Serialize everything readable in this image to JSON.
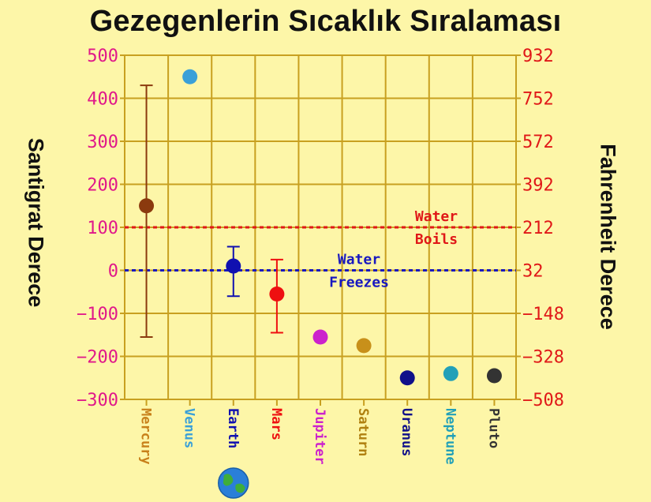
{
  "title": "Gezegenlerin Sıcaklık Sıralaması",
  "chart_data": {
    "type": "scatter",
    "title": "Gezegenlerin Sıcaklık Sıralaması",
    "ylabel": "Santigrat Derece",
    "ylabel_right": "Fahrenheit Derece",
    "ylim": [
      -300,
      500
    ],
    "yticks": [
      "500",
      "400",
      "300",
      "200",
      "100",
      "0",
      "−100",
      "−200",
      "−300"
    ],
    "yticks_right": [
      "932",
      "752",
      "572",
      "392",
      "212",
      "32",
      "−148",
      "−328",
      "−508"
    ],
    "grid": true,
    "categories": [
      "Mercury",
      "Venus",
      "Earth",
      "Mars",
      "Jupiter",
      "Saturn",
      "Uranus",
      "Neptune",
      "Pluto"
    ],
    "points": [
      {
        "planet": "Mercury",
        "value": 150,
        "min": 430,
        "max_low": -155,
        "color": "#8b3a0e",
        "label_color": "#c8801a"
      },
      {
        "planet": "Venus",
        "value": 450,
        "color": "#3aa0d8",
        "label_color": "#3aa0d8"
      },
      {
        "planet": "Earth",
        "value": 10,
        "min": 55,
        "max_low": -60,
        "color": "#1010b0",
        "label_color": "#1010b0"
      },
      {
        "planet": "Mars",
        "value": -55,
        "min": 25,
        "max_low": -145,
        "color": "#ee1010",
        "label_color": "#ee1010"
      },
      {
        "planet": "Jupiter",
        "value": -155,
        "color": "#cc22cc",
        "label_color": "#cc22cc"
      },
      {
        "planet": "Saturn",
        "value": -175,
        "color": "#c8901a",
        "label_color": "#b08010"
      },
      {
        "planet": "Uranus",
        "value": -250,
        "color": "#10108a",
        "label_color": "#10108a"
      },
      {
        "planet": "Neptune",
        "value": -240,
        "color": "#22a0b8",
        "label_color": "#22a0b8"
      },
      {
        "planet": "Pluto",
        "value": -245,
        "color": "#333333",
        "label_color": "#333333"
      }
    ],
    "reference_lines": [
      {
        "value": 100,
        "color": "#e01818",
        "label_line1": "Water",
        "label_line2": "Boils"
      },
      {
        "value": 0,
        "color": "#1818c0",
        "label_line1": "Water",
        "label_line2": "Freezes"
      }
    ],
    "colors": {
      "grid": "#c8a020",
      "background": "#fdf6a8"
    }
  }
}
